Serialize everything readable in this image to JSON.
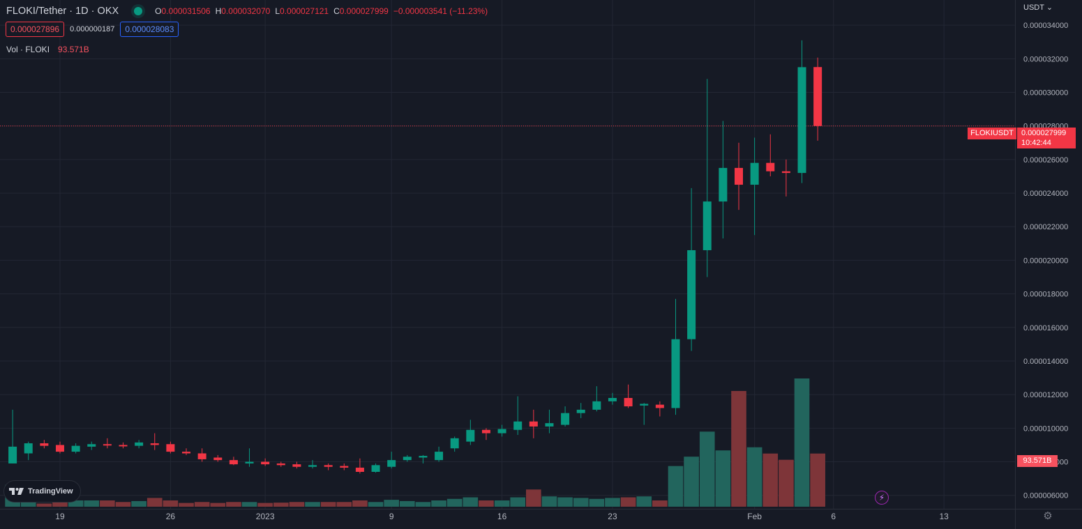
{
  "header": {
    "title": "FLOKI/Tether · 1D · OKX",
    "ohlc": {
      "o_label": "O",
      "o_value": "0.000031506",
      "h_label": "H",
      "h_value": "0.000032070",
      "l_label": "L",
      "l_value": "0.000027121",
      "c_label": "C",
      "c_value": "0.000027999",
      "change": "−0.000003541 (−11.23%)"
    }
  },
  "quote": {
    "bid": "0.000027896",
    "spread": "0.000000187",
    "ask": "0.000028083"
  },
  "volume_legend": {
    "label": "Vol · FLOKI",
    "value": "93.571B"
  },
  "currency_selector": "USDT",
  "price_tag": {
    "symbol": "FLOKIUSDT",
    "price": "0.000027999",
    "countdown": "10:42:44"
  },
  "volume_tag": "93.571B",
  "logo_text": "TradingView",
  "colors": {
    "up": "#089981",
    "down": "#f23645",
    "up_vol": "#22655d",
    "down_vol": "#7e3539",
    "background": "#161a25",
    "grid": "#232734"
  },
  "icons": {
    "settings": "gear-icon",
    "replay": "flash-icon",
    "currency": "chevron-down-icon"
  },
  "chart_data": {
    "type": "candlestick",
    "interval": "1D",
    "y_axis": {
      "ticks": [
        "0.000034000",
        "0.000032000",
        "0.000030000",
        "0.000028000",
        "0.000026000",
        "0.000024000",
        "0.000022000",
        "0.000020000",
        "0.000018000",
        "0.000016000",
        "0.000014000",
        "0.000012000",
        "0.000010000",
        "0.000008000",
        "0.000006000"
      ],
      "tick_values": [
        34,
        32,
        30,
        28,
        26,
        24,
        22,
        20,
        18,
        16,
        14,
        12,
        10,
        8,
        6
      ],
      "unit_scale": "1e-6 USDT",
      "ylim": [
        5.2,
        35.5
      ]
    },
    "x_axis": {
      "ticks": [
        {
          "label": "19",
          "day": 3
        },
        {
          "label": "26",
          "day": 10
        },
        {
          "label": "2023",
          "day": 16
        },
        {
          "label": "9",
          "day": 24
        },
        {
          "label": "16",
          "day": 31
        },
        {
          "label": "23",
          "day": 38
        },
        {
          "label": "Feb",
          "day": 47
        },
        {
          "label": "6",
          "day": 52
        },
        {
          "label": "13",
          "day": 59
        }
      ],
      "first_date": "2022-12-16",
      "xlim": [
        -0.8,
        63.5
      ]
    },
    "last_price": 27.999,
    "candles": [
      {
        "o": 7.9,
        "h": 11.1,
        "l": 7.9,
        "c": 8.9,
        "v": 0.7
      },
      {
        "o": 8.5,
        "h": 9.2,
        "l": 8.1,
        "c": 9.1,
        "v": 0.43
      },
      {
        "o": 9.1,
        "h": 9.3,
        "l": 8.8,
        "c": 8.95,
        "v": 0.1
      },
      {
        "o": 9.0,
        "h": 9.2,
        "l": 8.5,
        "c": 8.6,
        "v": 0.2
      },
      {
        "o": 8.6,
        "h": 9.1,
        "l": 8.5,
        "c": 8.95,
        "v": 0.2
      },
      {
        "o": 8.9,
        "h": 9.2,
        "l": 8.7,
        "c": 9.05,
        "v": 0.2
      },
      {
        "o": 9.05,
        "h": 9.4,
        "l": 8.8,
        "c": 9.0,
        "v": 0.2
      },
      {
        "o": 9.0,
        "h": 9.15,
        "l": 8.8,
        "c": 8.95,
        "v": 0.15
      },
      {
        "o": 8.95,
        "h": 9.3,
        "l": 8.8,
        "c": 9.15,
        "v": 0.18
      },
      {
        "o": 9.1,
        "h": 9.7,
        "l": 8.7,
        "c": 9.0,
        "v": 0.28
      },
      {
        "o": 9.05,
        "h": 9.2,
        "l": 8.5,
        "c": 8.6,
        "v": 0.2
      },
      {
        "o": 8.6,
        "h": 8.8,
        "l": 8.4,
        "c": 8.5,
        "v": 0.12
      },
      {
        "o": 8.5,
        "h": 8.8,
        "l": 8.0,
        "c": 8.15,
        "v": 0.15
      },
      {
        "o": 8.25,
        "h": 8.4,
        "l": 8.0,
        "c": 8.1,
        "v": 0.12
      },
      {
        "o": 8.1,
        "h": 8.3,
        "l": 7.8,
        "c": 7.85,
        "v": 0.15
      },
      {
        "o": 7.9,
        "h": 8.8,
        "l": 7.7,
        "c": 8.0,
        "v": 0.15
      },
      {
        "o": 8.0,
        "h": 8.2,
        "l": 7.75,
        "c": 7.85,
        "v": 0.12
      },
      {
        "o": 7.9,
        "h": 8.0,
        "l": 7.7,
        "c": 7.8,
        "v": 0.13
      },
      {
        "o": 7.85,
        "h": 8.0,
        "l": 7.6,
        "c": 7.7,
        "v": 0.15
      },
      {
        "o": 7.7,
        "h": 8.1,
        "l": 7.6,
        "c": 7.8,
        "v": 0.15
      },
      {
        "o": 7.8,
        "h": 7.9,
        "l": 7.5,
        "c": 7.7,
        "v": 0.15
      },
      {
        "o": 7.75,
        "h": 7.9,
        "l": 7.5,
        "c": 7.65,
        "v": 0.15
      },
      {
        "o": 7.65,
        "h": 8.2,
        "l": 7.3,
        "c": 7.4,
        "v": 0.2
      },
      {
        "o": 7.4,
        "h": 7.9,
        "l": 7.35,
        "c": 7.8,
        "v": 0.15
      },
      {
        "o": 7.7,
        "h": 8.6,
        "l": 7.6,
        "c": 8.1,
        "v": 0.22
      },
      {
        "o": 8.1,
        "h": 8.4,
        "l": 8.0,
        "c": 8.3,
        "v": 0.18
      },
      {
        "o": 8.25,
        "h": 8.4,
        "l": 7.9,
        "c": 8.35,
        "v": 0.15
      },
      {
        "o": 8.1,
        "h": 8.9,
        "l": 8.0,
        "c": 8.6,
        "v": 0.2
      },
      {
        "o": 8.8,
        "h": 9.5,
        "l": 8.6,
        "c": 9.4,
        "v": 0.25
      },
      {
        "o": 9.2,
        "h": 10.5,
        "l": 9.0,
        "c": 9.9,
        "v": 0.3
      },
      {
        "o": 9.9,
        "h": 10.0,
        "l": 9.3,
        "c": 9.7,
        "v": 0.2
      },
      {
        "o": 9.7,
        "h": 10.2,
        "l": 9.5,
        "c": 9.95,
        "v": 0.2
      },
      {
        "o": 9.9,
        "h": 11.9,
        "l": 9.6,
        "c": 10.4,
        "v": 0.3
      },
      {
        "o": 10.4,
        "h": 11.1,
        "l": 9.4,
        "c": 10.1,
        "v": 0.55
      },
      {
        "o": 10.1,
        "h": 11.1,
        "l": 9.7,
        "c": 10.3,
        "v": 0.33
      },
      {
        "o": 10.2,
        "h": 11.3,
        "l": 10.1,
        "c": 10.9,
        "v": 0.3
      },
      {
        "o": 10.9,
        "h": 11.5,
        "l": 10.6,
        "c": 11.1,
        "v": 0.28
      },
      {
        "o": 11.1,
        "h": 12.5,
        "l": 11.0,
        "c": 11.6,
        "v": 0.25
      },
      {
        "o": 11.6,
        "h": 12.1,
        "l": 11.4,
        "c": 11.8,
        "v": 0.28
      },
      {
        "o": 11.8,
        "h": 12.6,
        "l": 11.2,
        "c": 11.3,
        "v": 0.3
      },
      {
        "o": 11.35,
        "h": 11.5,
        "l": 10.2,
        "c": 11.45,
        "v": 0.33
      },
      {
        "o": 11.4,
        "h": 11.6,
        "l": 10.7,
        "c": 11.2,
        "v": 0.2
      },
      {
        "o": 11.2,
        "h": 17.7,
        "l": 10.8,
        "c": 15.3,
        "v": 1.3
      },
      {
        "o": 15.3,
        "h": 24.3,
        "l": 14.6,
        "c": 20.6,
        "v": 1.6
      },
      {
        "o": 20.6,
        "h": 30.8,
        "l": 19.0,
        "c": 23.5,
        "v": 2.4
      },
      {
        "o": 23.5,
        "h": 28.3,
        "l": 21.3,
        "c": 25.5,
        "v": 1.8
      },
      {
        "o": 25.5,
        "h": 27.0,
        "l": 23.0,
        "c": 24.5,
        "v": 3.7
      },
      {
        "o": 24.5,
        "h": 27.3,
        "l": 21.5,
        "c": 25.8,
        "v": 1.9
      },
      {
        "o": 25.8,
        "h": 27.5,
        "l": 25.0,
        "c": 25.3,
        "v": 1.7
      },
      {
        "o": 25.3,
        "h": 26.0,
        "l": 23.8,
        "c": 25.2,
        "v": 1.5
      },
      {
        "o": 25.2,
        "h": 33.1,
        "l": 24.6,
        "c": 31.5,
        "v": 4.1
      },
      {
        "o": 31.506,
        "h": 32.07,
        "l": 27.121,
        "c": 27.999,
        "v": 1.7
      }
    ]
  }
}
